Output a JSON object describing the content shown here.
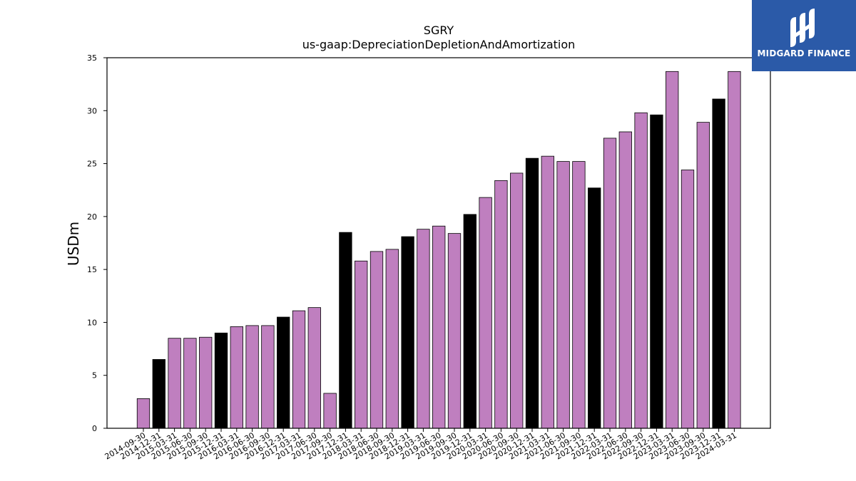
{
  "brand": {
    "name": "MIDGARD FINANCE",
    "bg_color": "#2b5aa8",
    "icon": "midgard-logo-icon"
  },
  "chart_data": {
    "type": "bar",
    "title": "SGRY",
    "subtitle": "us-gaap:DepreciationDepletionAndAmortization",
    "xlabel": "",
    "ylabel": "USDm",
    "ylim": [
      0,
      35
    ],
    "yticks": [
      0,
      5,
      10,
      15,
      20,
      25,
      30,
      35
    ],
    "grid": false,
    "colors": {
      "quarter": "#bf7fbf",
      "year_end": "#000000",
      "edge": "#000000"
    },
    "categories": [
      "2014-09-30",
      "2014-12-31",
      "2015-03-31",
      "2015-06-30",
      "2015-09-30",
      "2015-12-31",
      "2016-03-31",
      "2016-06-30",
      "2016-09-30",
      "2016-12-31",
      "2017-03-31",
      "2017-06-30",
      "2017-09-30",
      "2017-12-31",
      "2018-03-31",
      "2018-06-30",
      "2018-09-30",
      "2018-12-31",
      "2019-03-31",
      "2019-06-30",
      "2019-09-30",
      "2019-12-31",
      "2020-03-31",
      "2020-06-30",
      "2020-09-30",
      "2020-12-31",
      "2021-03-31",
      "2021-06-30",
      "2021-09-30",
      "2021-12-31",
      "2022-03-31",
      "2022-06-30",
      "2022-09-30",
      "2022-12-31",
      "2023-03-31",
      "2023-06-30",
      "2023-09-30",
      "2023-12-31",
      "2024-03-31"
    ],
    "values": [
      2.8,
      6.5,
      8.5,
      8.5,
      8.6,
      9.0,
      9.6,
      9.7,
      9.7,
      10.5,
      11.1,
      11.4,
      3.3,
      18.5,
      15.8,
      16.7,
      16.9,
      18.1,
      18.8,
      19.1,
      18.4,
      20.2,
      21.8,
      23.4,
      24.1,
      25.5,
      25.7,
      25.2,
      25.2,
      22.7,
      27.4,
      28.0,
      29.8,
      29.6,
      33.7,
      24.4,
      28.9,
      31.1,
      33.7
    ]
  }
}
